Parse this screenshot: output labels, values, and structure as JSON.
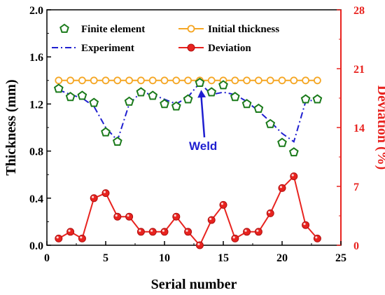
{
  "chart_data": {
    "type": "line",
    "xlabel": "Serial number",
    "ylabel_left": "Thickness (mm)",
    "ylabel_right": "Deviation (%)",
    "xlim": [
      0,
      25
    ],
    "ylim_left": [
      0.0,
      2.0
    ],
    "ylim_right": [
      0,
      28
    ],
    "x_ticks": [
      "0",
      "5",
      "10",
      "15",
      "20",
      "25"
    ],
    "y_left_ticks": [
      "0.0",
      "0.4",
      "0.8",
      "1.2",
      "1.6",
      "2.0"
    ],
    "y_right_ticks": [
      "0",
      "7",
      "14",
      "21",
      "28"
    ],
    "x": [
      1,
      2,
      3,
      4,
      5,
      6,
      7,
      8,
      9,
      10,
      11,
      12,
      13,
      14,
      15,
      16,
      17,
      18,
      19,
      20,
      21,
      22,
      23
    ],
    "series": [
      {
        "name": "Finite element",
        "axis": "left",
        "style": "marker-pentagon",
        "color": "#1a7a1a",
        "values": [
          1.33,
          1.26,
          1.27,
          1.21,
          0.96,
          0.88,
          1.22,
          1.3,
          1.27,
          1.2,
          1.18,
          1.24,
          1.38,
          1.3,
          1.36,
          1.26,
          1.2,
          1.16,
          1.03,
          0.87,
          0.79,
          1.24,
          1.24
        ]
      },
      {
        "name": "Initial thickness",
        "axis": "left",
        "style": "line-open-circle",
        "color": "#f5a623",
        "values": [
          1.4,
          1.4,
          1.4,
          1.4,
          1.4,
          1.4,
          1.4,
          1.4,
          1.4,
          1.4,
          1.4,
          1.4,
          1.4,
          1.4,
          1.4,
          1.4,
          1.4,
          1.4,
          1.4,
          1.4,
          1.4,
          1.4,
          1.4
        ]
      },
      {
        "name": "Experiment",
        "axis": "left",
        "style": "dash-dot",
        "color": "#1f1fd0",
        "values": [
          1.32,
          1.28,
          1.25,
          1.18,
          1.0,
          0.89,
          1.2,
          1.3,
          1.28,
          1.24,
          1.2,
          1.26,
          1.38,
          1.28,
          1.3,
          1.28,
          1.22,
          1.14,
          1.05,
          0.95,
          0.88,
          1.22,
          1.24
        ]
      },
      {
        "name": "Deviation",
        "axis": "right",
        "style": "line-filled-circle",
        "color": "#e8231f",
        "values": [
          0.8,
          1.6,
          0.8,
          5.6,
          6.2,
          3.4,
          3.4,
          1.6,
          1.6,
          1.6,
          3.4,
          1.6,
          0.0,
          3.0,
          4.8,
          0.8,
          1.6,
          1.6,
          3.8,
          6.8,
          8.2,
          2.4,
          0.8
        ]
      }
    ],
    "annotations": [
      {
        "text": "Weld",
        "points_to_x": 13,
        "points_to_y": 1.38
      }
    ],
    "legend": "top, two columns",
    "grid": false
  },
  "colors": {
    "left_axis": "#000000",
    "right_axis": "#e8231f",
    "annotation": "#1f1fd0"
  }
}
